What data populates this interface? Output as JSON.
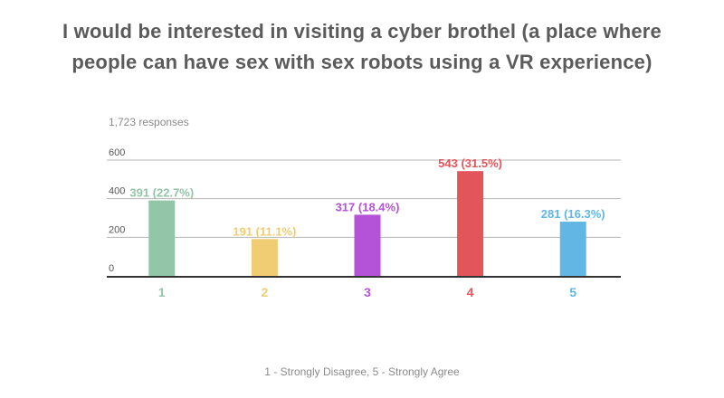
{
  "title_line1": "I would be interested in visiting a cyber brothel (a place where",
  "title_line2": "people can have sex with sex robots using a VR experience)",
  "responses": "1,723 responses",
  "footnote": "1 - Strongly Disagree, 5 - Strongly Agree",
  "chart_data": {
    "type": "bar",
    "categories": [
      "1",
      "2",
      "3",
      "4",
      "5"
    ],
    "values": [
      391,
      191,
      317,
      543,
      281
    ],
    "data_labels": [
      "391 (22.7%)",
      "191 (11.1%)",
      "317 (18.4%)",
      "543 (31.5%)",
      "281 (16.3%)"
    ],
    "colors": [
      "#93c5a8",
      "#f0cd72",
      "#b553d8",
      "#e2555b",
      "#62b6e3"
    ],
    "yticks": [
      0,
      200,
      400,
      600
    ],
    "ylim": [
      0,
      600
    ],
    "grid": true,
    "legend": "none"
  }
}
